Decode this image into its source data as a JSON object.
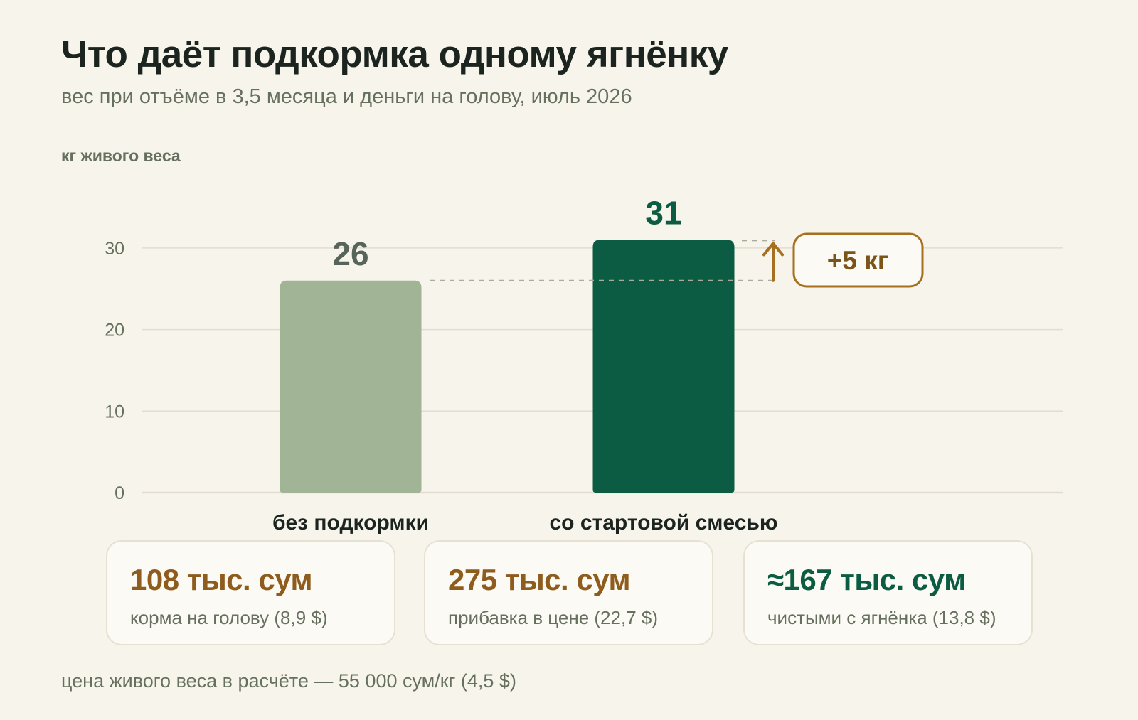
{
  "header": {
    "title": "Что даёт подкормка одному ягнёнку",
    "subtitle": "вес при отъёме в 3,5 месяца и деньги на голову, июль 2026",
    "unit_label": "кг живого веса"
  },
  "chart_data": {
    "type": "bar",
    "categories": [
      "без подкормки",
      "со стартовой смесью"
    ],
    "values": [
      26,
      31
    ],
    "value_labels": [
      "26",
      "31"
    ],
    "bar_colors": [
      "#a1b596",
      "#0c5c43"
    ],
    "value_label_colors": [
      "#56645a",
      "#0c5c43"
    ],
    "ylim": [
      0,
      31
    ],
    "yticks": [
      0,
      10,
      20,
      30
    ],
    "grid": true,
    "annotation": {
      "text": "+5 кг",
      "color": "#a6701f",
      "from": 26,
      "to": 31
    }
  },
  "cards": [
    {
      "value": "108 тыс. сум",
      "label": "корма на голову (8,9 $)",
      "color": "#8e5c1c"
    },
    {
      "value": "275 тыс. сум",
      "label": "прибавка в цене (22,7 $)",
      "color": "#8e5c1c"
    },
    {
      "value": "≈167 тыс. сум",
      "label": "чистыми с ягнёнка (13,8 $)",
      "color": "#0c5c43"
    }
  ],
  "footnote": "цена живого веса в расчёте — 55 000 сум/кг (4,5 $)",
  "colors": {
    "background": "#f7f4ec",
    "text_dark": "#1c241f",
    "text_muted": "#66705f",
    "grid": "#e2ddd0"
  }
}
